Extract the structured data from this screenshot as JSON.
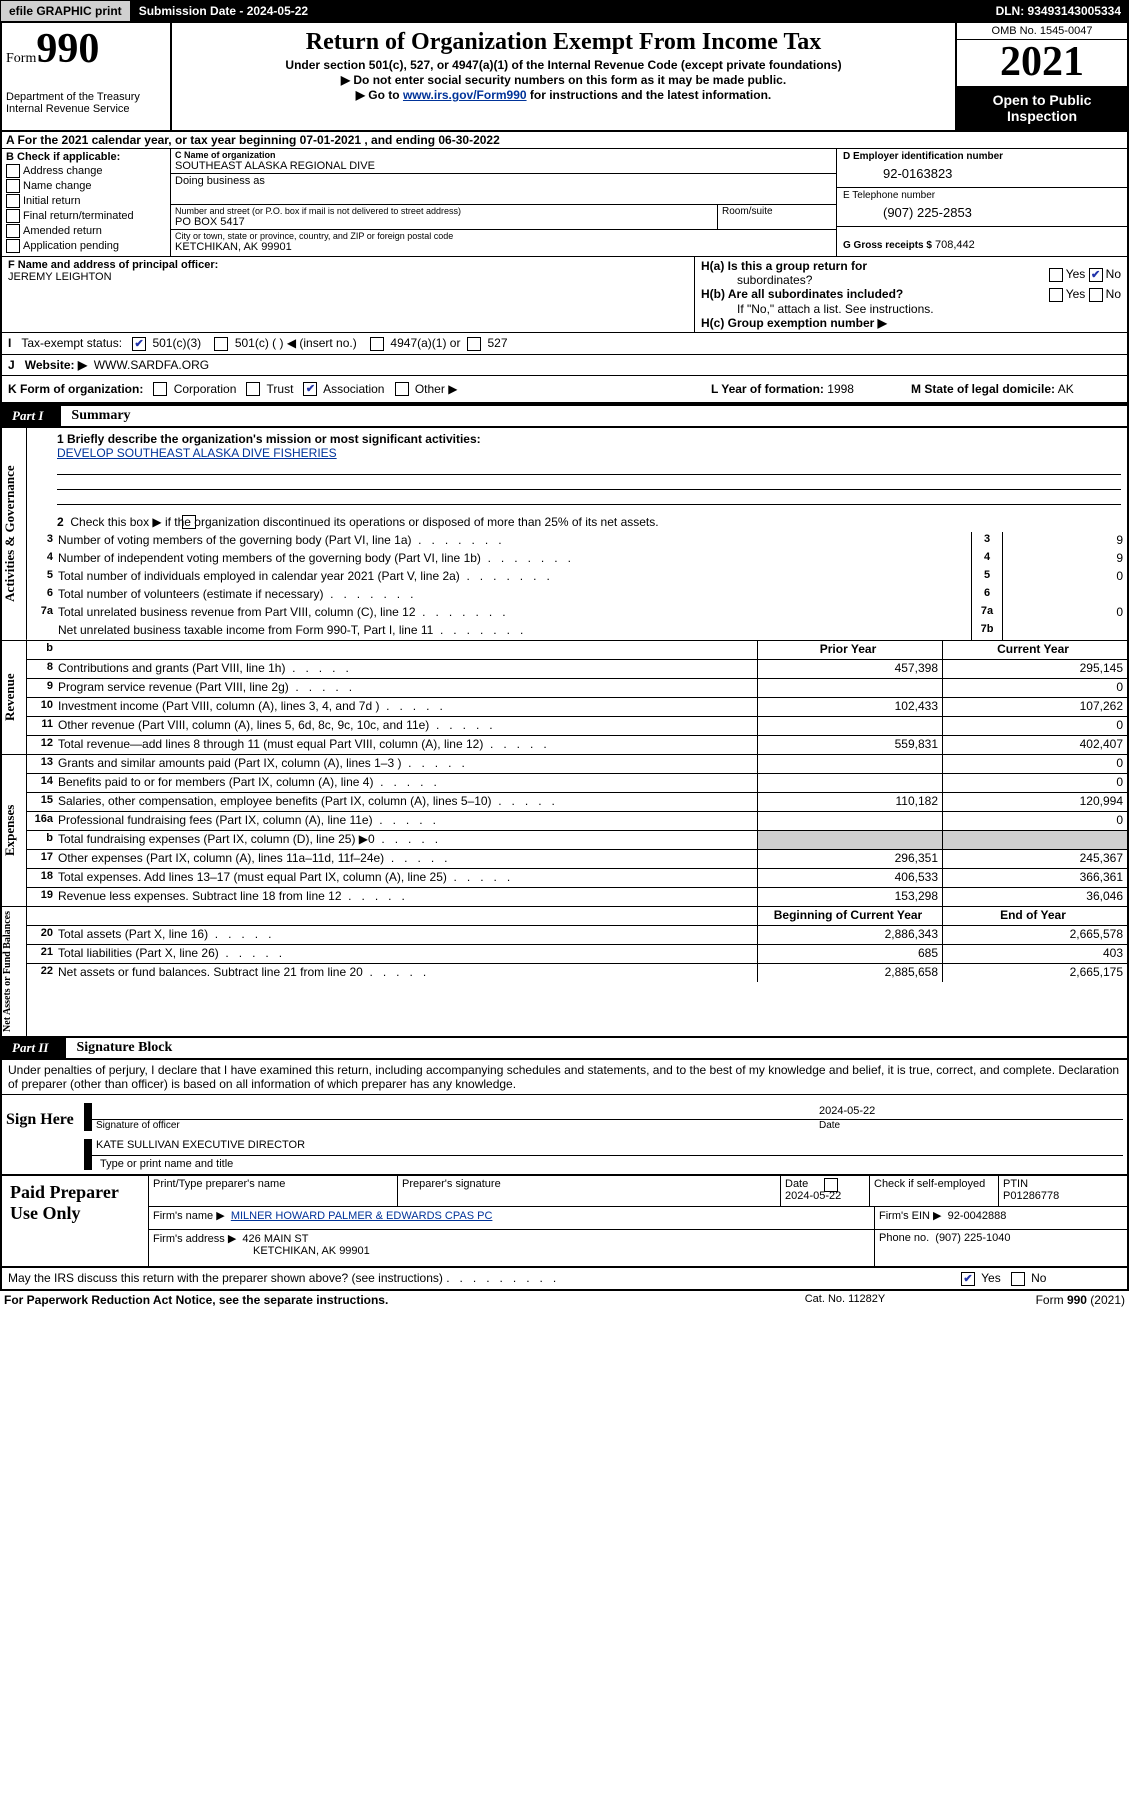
{
  "topbar": {
    "efile_btn": "efile GRAPHIC print",
    "submission": "Submission Date - 2024-05-22",
    "dln": "DLN: 93493143005334"
  },
  "header": {
    "form_prefix": "Form",
    "form_no": "990",
    "dept": "Department of the Treasury",
    "irs": "Internal Revenue Service",
    "title": "Return of Organization Exempt From Income Tax",
    "sub1": "Under section 501(c), 527, or 4947(a)(1) of the Internal Revenue Code (except private foundations)",
    "sub2": "▶ Do not enter social security numbers on this form as it may be made public.",
    "sub3_pre": "▶ Go to ",
    "sub3_link": "www.irs.gov/Form990",
    "sub3_post": " for instructions and the latest information.",
    "omb": "OMB No. 1545-0047",
    "year": "2021",
    "open1": "Open to Public",
    "open2": "Inspection"
  },
  "row_A": "A For the 2021 calendar year, or tax year beginning 07-01-2021   , and ending 06-30-2022",
  "B": {
    "hdr": "B Check if applicable:",
    "opts": [
      "Address change",
      "Name change",
      "Initial return",
      "Final return/terminated",
      "Amended return",
      "Application pending"
    ]
  },
  "C": {
    "name_lbl": "C Name of organization",
    "name": "SOUTHEAST ALASKA REGIONAL DIVE",
    "dba_lbl": "Doing business as",
    "dba": "",
    "street_lbl": "Number and street (or P.O. box if mail is not delivered to street address)",
    "street": "PO BOX 5417",
    "room_lbl": "Room/suite",
    "city_lbl": "City or town, state or province, country, and ZIP or foreign postal code",
    "city": "KETCHIKAN, AK  99901"
  },
  "D": {
    "lbl": "D Employer identification number",
    "val": "92-0163823"
  },
  "E": {
    "lbl": "E Telephone number",
    "val": "(907) 225-2853"
  },
  "G": {
    "lbl": "G Gross receipts $",
    "val": "708,442"
  },
  "F": {
    "lbl": "F  Name and address of principal officer:",
    "val": "JEREMY LEIGHTON"
  },
  "H": {
    "a": "H(a)  Is this a group return for",
    "a2": "subordinates?",
    "b": "H(b)  Are all subordinates included?",
    "b2": "If \"No,\" attach a list. See instructions.",
    "c": "H(c)  Group exemption number ▶",
    "yes": "Yes",
    "no": "No"
  },
  "I": {
    "lbl": "Tax-exempt status:",
    "o1": "501(c)(3)",
    "o2": "501(c) (  ) ◀ (insert no.)",
    "o3": "4947(a)(1) or",
    "o4": "527"
  },
  "J": {
    "lbl": "Website: ▶",
    "val": "WWW.SARDFA.ORG"
  },
  "K": {
    "lbl": "K Form of organization:",
    "opts": [
      "Corporation",
      "Trust",
      "Association",
      "Other ▶"
    ],
    "checked": 2
  },
  "L": {
    "lbl": "L Year of formation:",
    "val": "1998"
  },
  "M": {
    "lbl": "M State of legal domicile:",
    "val": "AK"
  },
  "parts": {
    "p1": "Part I",
    "p1_title": "Summary",
    "p2": "Part II",
    "p2_title": "Signature Block"
  },
  "sidebars": {
    "ag": "Activities & Governance",
    "rev": "Revenue",
    "exp": "Expenses",
    "na": "Net Assets or Fund Balances"
  },
  "summary": {
    "line1_lbl": "1  Briefly describe the organization's mission or most significant activities:",
    "line1_val": "DEVELOP SOUTHEAST ALASKA DIVE FISHERIES",
    "line2": "Check this box ▶         if the organization discontinued its operations or disposed of more than 25% of its net assets.",
    "rows_ag": [
      {
        "n": "3",
        "d": "Number of voting members of the governing body (Part VI, line 1a)",
        "ln": "3",
        "v": "9"
      },
      {
        "n": "4",
        "d": "Number of independent voting members of the governing body (Part VI, line 1b)",
        "ln": "4",
        "v": "9"
      },
      {
        "n": "5",
        "d": "Total number of individuals employed in calendar year 2021 (Part V, line 2a)",
        "ln": "5",
        "v": "0"
      },
      {
        "n": "6",
        "d": "Total number of volunteers (estimate if necessary)",
        "ln": "6",
        "v": ""
      },
      {
        "n": "7a",
        "d": "Total unrelated business revenue from Part VIII, column (C), line 12",
        "ln": "7a",
        "v": "0"
      },
      {
        "n": "",
        "d": "Net unrelated business taxable income from Form 990-T, Part I, line 11",
        "ln": "7b",
        "v": ""
      }
    ],
    "col_hdr1": "Prior Year",
    "col_hdr2": "Current Year",
    "rows_rev": [
      {
        "n": "8",
        "d": "Contributions and grants (Part VIII, line 1h)",
        "py": "457,398",
        "cy": "295,145"
      },
      {
        "n": "9",
        "d": "Program service revenue (Part VIII, line 2g)",
        "py": "",
        "cy": "0"
      },
      {
        "n": "10",
        "d": "Investment income (Part VIII, column (A), lines 3, 4, and 7d )",
        "py": "102,433",
        "cy": "107,262"
      },
      {
        "n": "11",
        "d": "Other revenue (Part VIII, column (A), lines 5, 6d, 8c, 9c, 10c, and 11e)",
        "py": "",
        "cy": "0"
      },
      {
        "n": "12",
        "d": "Total revenue—add lines 8 through 11 (must equal Part VIII, column (A), line 12)",
        "py": "559,831",
        "cy": "402,407"
      }
    ],
    "rows_exp": [
      {
        "n": "13",
        "d": "Grants and similar amounts paid (Part IX, column (A), lines 1–3 )",
        "py": "",
        "cy": "0"
      },
      {
        "n": "14",
        "d": "Benefits paid to or for members (Part IX, column (A), line 4)",
        "py": "",
        "cy": "0"
      },
      {
        "n": "15",
        "d": "Salaries, other compensation, employee benefits (Part IX, column (A), lines 5–10)",
        "py": "110,182",
        "cy": "120,994"
      },
      {
        "n": "16a",
        "d": "Professional fundraising fees (Part IX, column (A), line 11e)",
        "py": "",
        "cy": "0"
      },
      {
        "n": "b",
        "d": "Total fundraising expenses (Part IX, column (D), line 25) ▶0",
        "py": "GREY",
        "cy": "GREY"
      },
      {
        "n": "17",
        "d": "Other expenses (Part IX, column (A), lines 11a–11d, 11f–24e)",
        "py": "296,351",
        "cy": "245,367"
      },
      {
        "n": "18",
        "d": "Total expenses. Add lines 13–17 (must equal Part IX, column (A), line 25)",
        "py": "406,533",
        "cy": "366,361"
      },
      {
        "n": "19",
        "d": "Revenue less expenses. Subtract line 18 from line 12",
        "py": "153,298",
        "cy": "36,046"
      }
    ],
    "na_hdr1": "Beginning of Current Year",
    "na_hdr2": "End of Year",
    "rows_na": [
      {
        "n": "20",
        "d": "Total assets (Part X, line 16)",
        "py": "2,886,343",
        "cy": "2,665,578"
      },
      {
        "n": "21",
        "d": "Total liabilities (Part X, line 26)",
        "py": "685",
        "cy": "403"
      },
      {
        "n": "22",
        "d": "Net assets or fund balances. Subtract line 21 from line 20",
        "py": "2,885,658",
        "cy": "2,665,175"
      }
    ]
  },
  "sig": {
    "penalty": "Under penalties of perjury, I declare that I have examined this return, including accompanying schedules and statements, and to the best of my knowledge and belief, it is true, correct, and complete. Declaration of preparer (other than officer) is based on all information of which preparer has any knowledge.",
    "sign_here": "Sign Here",
    "sig_off": "Signature of officer",
    "date": "Date",
    "date_val": "2024-05-22",
    "name": "KATE SULLIVAN  EXECUTIVE DIRECTOR",
    "type_name": "Type or print name and title"
  },
  "paid": {
    "label": "Paid Preparer Use Only",
    "r1": {
      "c1": "Print/Type preparer's name",
      "c2": "Preparer's signature",
      "c3": "Date",
      "c3v": "2024-05-22",
      "c4": "Check          if self-employed",
      "c5": "PTIN",
      "c5v": "P01286778"
    },
    "r2": {
      "c1": "Firm's name      ▶",
      "c1v": "MILNER HOWARD PALMER & EDWARDS CPAS PC",
      "c2": "Firm's EIN ▶",
      "c2v": "92-0042888"
    },
    "r3": {
      "c1": "Firm's address ▶",
      "c1v": "426 MAIN ST",
      "c1v2": "KETCHIKAN, AK  99901",
      "c2": "Phone no.",
      "c2v": "(907) 225-1040"
    }
  },
  "may_discuss": "May the IRS discuss this return with the preparer shown above? (see instructions)",
  "footer": {
    "f1": "For Paperwork Reduction Act Notice, see the separate instructions.",
    "f2": "Cat. No. 11282Y",
    "f3": "Form 990 (2021)"
  }
}
